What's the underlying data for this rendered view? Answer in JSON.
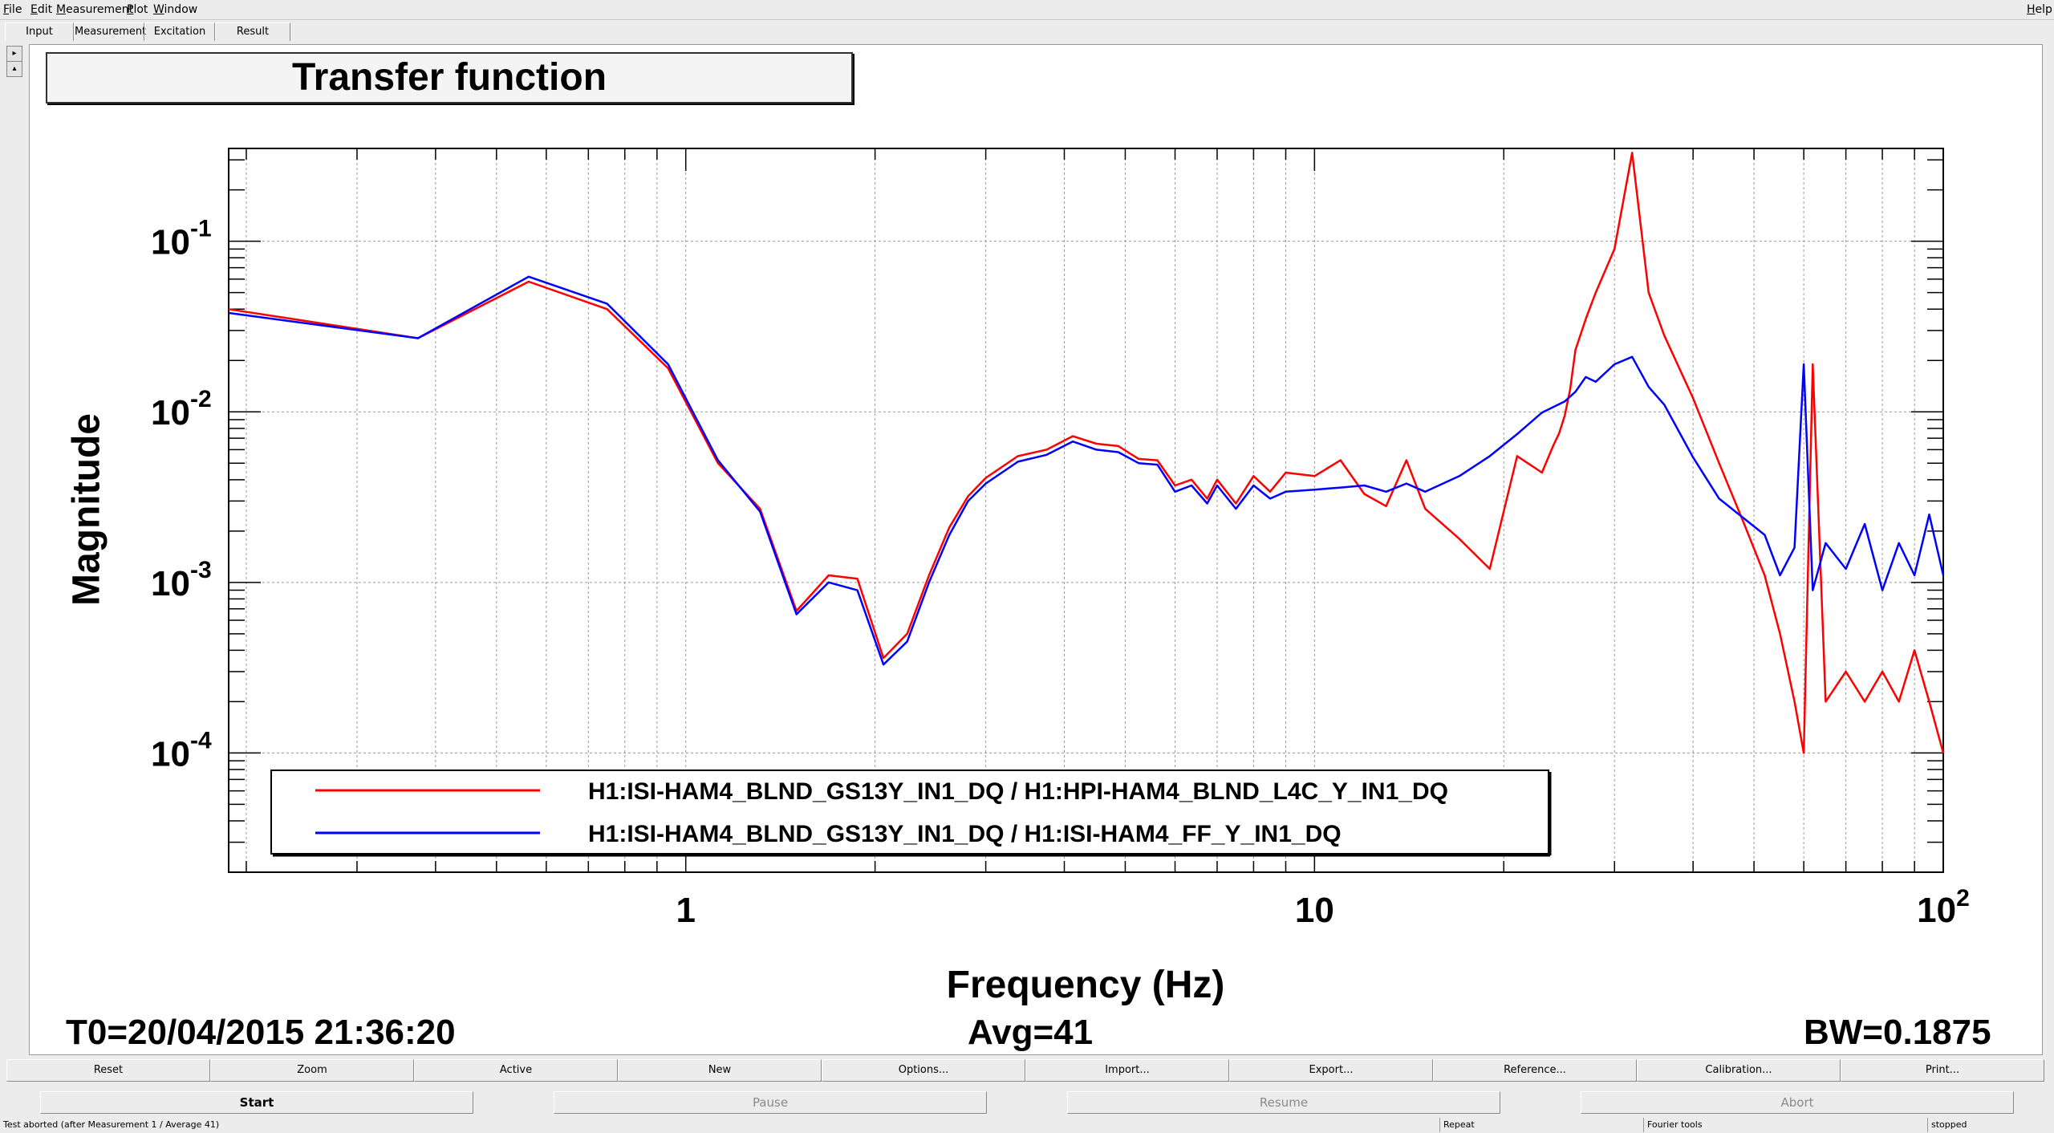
{
  "menu": {
    "file": "File",
    "edit": "Edit",
    "measurement": "Measurement",
    "plot": "Plot",
    "window": "Window",
    "help": "Help"
  },
  "tabs": [
    "Input",
    "Measurement",
    "Excitation",
    "Result"
  ],
  "tabs_active": "Result",
  "chart_title": "Transfer function",
  "chart_data": {
    "type": "line",
    "title": "Transfer function",
    "xlabel": "Frequency (Hz)",
    "ylabel": "Magnitude",
    "xscale": "log",
    "yscale": "log",
    "xlim": [
      0.1875,
      100
    ],
    "ylim": [
      2e-05,
      0.35
    ],
    "x_tick_labels": [
      "1",
      "10",
      "10^2"
    ],
    "y_tick_labels": [
      "10^-4",
      "10^-3",
      "10^-2",
      "10^-1"
    ],
    "grid": true,
    "legend_position": "bottom-left",
    "series": [
      {
        "name": "H1:ISI-HAM4_BLND_GS13Y_IN1_DQ / H1:HPI-HAM4_BLND_L4C_Y_IN1_DQ",
        "color": "#ff0000",
        "x": [
          0.1875,
          0.375,
          0.5625,
          0.75,
          0.9375,
          1.125,
          1.3125,
          1.5,
          1.6875,
          1.875,
          2.0625,
          2.25,
          2.4375,
          2.625,
          2.8125,
          3.0,
          3.375,
          3.75,
          4.125,
          4.5,
          4.875,
          5.25,
          5.625,
          6.0,
          6.375,
          6.75,
          7.0,
          7.5,
          8.0,
          8.5,
          9.0,
          10.0,
          11.0,
          12.0,
          13.0,
          14.0,
          15.0,
          17.0,
          19.0,
          21.0,
          23.0,
          24.0,
          24.5,
          25.0,
          25.5,
          26.0,
          27.0,
          28.0,
          30.0,
          32.0,
          34.0,
          36.0,
          40.0,
          44.0,
          48.0,
          52.0,
          55.0,
          58.0,
          60.0,
          62.0,
          65.0,
          70.0,
          75.0,
          80.0,
          85.0,
          90.0,
          95.0,
          100.0
        ],
        "y": [
          0.04,
          0.027,
          0.058,
          0.04,
          0.018,
          0.005,
          0.0027,
          0.00068,
          0.0011,
          0.00105,
          0.00036,
          0.0005,
          0.0011,
          0.0021,
          0.0032,
          0.0041,
          0.0055,
          0.006,
          0.0072,
          0.0065,
          0.0063,
          0.0053,
          0.0052,
          0.0037,
          0.004,
          0.0031,
          0.004,
          0.0029,
          0.0042,
          0.0034,
          0.0044,
          0.0042,
          0.0052,
          0.0033,
          0.0028,
          0.0052,
          0.0027,
          0.0018,
          0.0012,
          0.0055,
          0.0044,
          0.0064,
          0.0075,
          0.0095,
          0.0135,
          0.023,
          0.035,
          0.05,
          0.09,
          0.33,
          0.05,
          0.028,
          0.012,
          0.005,
          0.0023,
          0.0011,
          0.0005,
          0.0002,
          0.0001,
          0.019,
          0.0002,
          0.0003,
          0.0002,
          0.0003,
          0.0002,
          0.0004,
          0.0002,
          0.0001
        ]
      },
      {
        "name": "H1:ISI-HAM4_BLND_GS13Y_IN1_DQ / H1:ISI-HAM4_FF_Y_IN1_DQ",
        "color": "#0000ff",
        "x": [
          0.1875,
          0.375,
          0.5625,
          0.75,
          0.9375,
          1.125,
          1.3125,
          1.5,
          1.6875,
          1.875,
          2.0625,
          2.25,
          2.4375,
          2.625,
          2.8125,
          3.0,
          3.375,
          3.75,
          4.125,
          4.5,
          4.875,
          5.25,
          5.625,
          6.0,
          6.375,
          6.75,
          7.0,
          7.5,
          8.0,
          8.5,
          9.0,
          10.0,
          11.0,
          12.0,
          13.0,
          14.0,
          15.0,
          17.0,
          19.0,
          21.0,
          23.0,
          25.0,
          26.0,
          27.0,
          28.0,
          30.0,
          32.0,
          34.0,
          36.0,
          40.0,
          44.0,
          48.0,
          52.0,
          55.0,
          58.0,
          60.0,
          62.0,
          65.0,
          70.0,
          75.0,
          80.0,
          85.0,
          90.0,
          95.0,
          100.0
        ],
        "y": [
          0.038,
          0.027,
          0.062,
          0.043,
          0.019,
          0.0052,
          0.0026,
          0.00065,
          0.001,
          0.0009,
          0.00033,
          0.00045,
          0.001,
          0.0019,
          0.003,
          0.0038,
          0.0051,
          0.0056,
          0.0067,
          0.006,
          0.0058,
          0.005,
          0.0049,
          0.0034,
          0.0037,
          0.0029,
          0.0037,
          0.0027,
          0.0037,
          0.0031,
          0.0034,
          0.0035,
          0.0036,
          0.0037,
          0.0034,
          0.0038,
          0.0034,
          0.0042,
          0.0055,
          0.0074,
          0.0099,
          0.0115,
          0.0131,
          0.016,
          0.015,
          0.019,
          0.021,
          0.014,
          0.011,
          0.0054,
          0.0031,
          0.0024,
          0.0019,
          0.0011,
          0.0016,
          0.019,
          0.0009,
          0.0017,
          0.0012,
          0.0022,
          0.0009,
          0.0017,
          0.0011,
          0.0025,
          0.0011
        ]
      }
    ]
  },
  "stats": {
    "t0": "T0=20/04/2015 21:36:20",
    "avg": "Avg=41",
    "bw": "BW=0.1875"
  },
  "toolbar": [
    "Reset",
    "Zoom",
    "Active",
    "New",
    "Options...",
    "Import...",
    "Export...",
    "Reference...",
    "Calibration...",
    "Print..."
  ],
  "controls": {
    "start": "Start",
    "pause": "Pause",
    "resume": "Resume",
    "abort": "Abort"
  },
  "status": {
    "message": "Test aborted (after Measurement 1 / Average 41)",
    "repeat": "Repeat",
    "fourier": "Fourier tools",
    "state": "stopped"
  }
}
